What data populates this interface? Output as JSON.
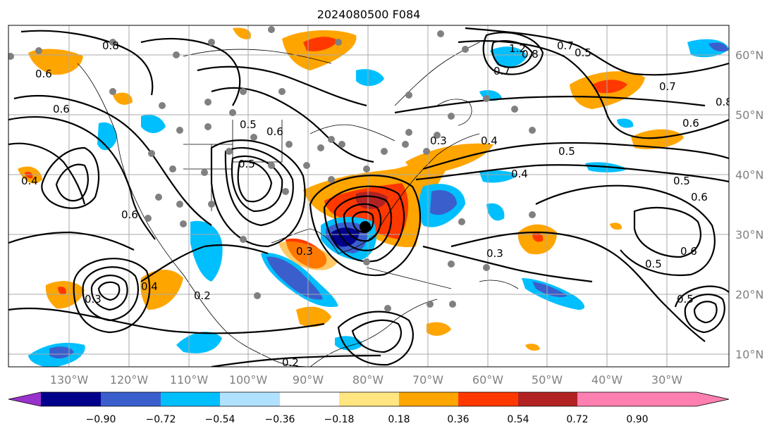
{
  "title": "2024080500 F084",
  "map": {
    "lon_ticks": [
      "130°W",
      "120°W",
      "110°W",
      "100°W",
      "90°W",
      "80°W",
      "70°W",
      "60°W",
      "50°W",
      "40°W",
      "30°W"
    ],
    "lat_ticks": [
      "60°N",
      "50°N",
      "40°N",
      "30°N",
      "20°N",
      "10°N"
    ],
    "tick_color": "#808080",
    "contour_color": "#000000",
    "station_marker_color": "#808080",
    "contour_labels": [
      "1.2",
      "0.8",
      "0.7",
      "0.6",
      "0.5",
      "0.4",
      "0.3",
      "0.2",
      "0.8",
      "0.6",
      "0.5",
      "0.4",
      "0.6",
      "0.5",
      "0.3",
      "0.3",
      "0.3",
      "0.2",
      "0.4",
      "0.6",
      "0.5",
      "0.6",
      "0.5",
      "0.7",
      "0.6",
      "0.4",
      "0.5",
      "0.6",
      "0.8",
      "0.7",
      "0.5"
    ]
  },
  "colorbar": {
    "ticks": [
      "−0.90",
      "−0.72",
      "−0.54",
      "−0.36",
      "−0.18",
      "0.18",
      "0.36",
      "0.54",
      "0.72",
      "0.90"
    ],
    "colors": [
      "#9932cc",
      "#00008b",
      "#3a5fcd",
      "#00bfff",
      "#b0e2ff",
      "#ffffff",
      "#ffe680",
      "#ffa500",
      "#ff3800",
      "#b22222",
      "#ff80b0"
    ]
  }
}
